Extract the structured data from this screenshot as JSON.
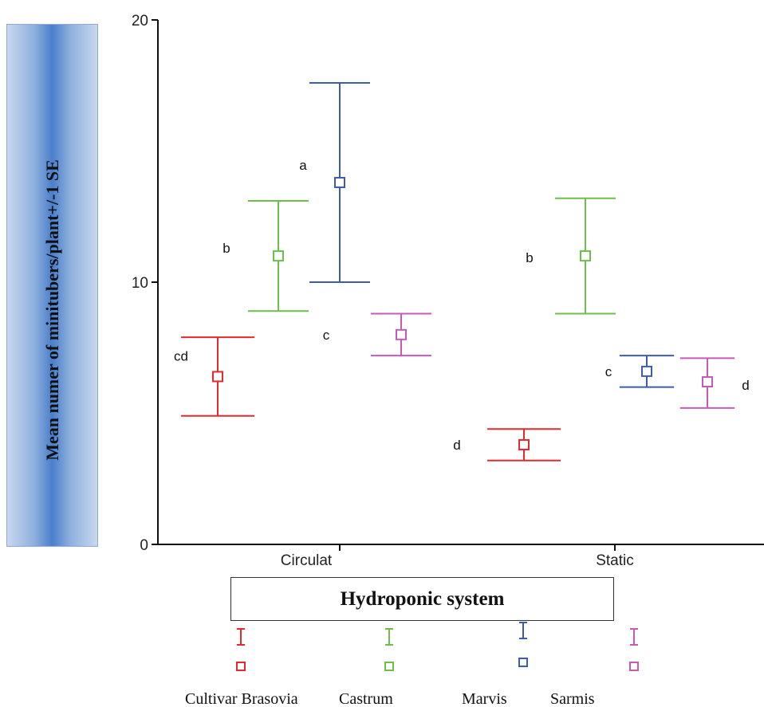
{
  "ylabel": "Mean numer of minitubers/plant+/-1 SE",
  "xlabel": "Hydroponic system",
  "chart_data": {
    "type": "errorbar",
    "categories": [
      "Circulat",
      "Static"
    ],
    "yticks": [
      0,
      10,
      20
    ],
    "ylim": [
      0,
      20
    ],
    "series": [
      {
        "name": "Cultivar Brasovia",
        "color": "#e8282d",
        "mean": [
          6.4,
          3.8
        ],
        "low": [
          4.9,
          3.2
        ],
        "high": [
          7.9,
          4.4
        ],
        "letters": [
          "cd",
          "d"
        ]
      },
      {
        "name": "Castrum",
        "color": "#6cc04a",
        "mean": [
          11.0,
          11.0
        ],
        "low": [
          8.9,
          8.8
        ],
        "high": [
          13.1,
          13.2
        ],
        "letters": [
          "b",
          "b"
        ]
      },
      {
        "name": "Marvis",
        "color": "#3e5bb0",
        "mean": [
          13.8,
          6.6
        ],
        "low": [
          10.0,
          6.0
        ],
        "high": [
          17.6,
          7.2
        ],
        "letters": [
          "a",
          "c"
        ]
      },
      {
        "name": "Sarmis",
        "color": "#c55ab8",
        "mean": [
          8.0,
          6.2
        ],
        "low": [
          7.2,
          5.2
        ],
        "high": [
          8.8,
          7.1
        ],
        "letters": [
          "c",
          "d"
        ]
      }
    ]
  }
}
